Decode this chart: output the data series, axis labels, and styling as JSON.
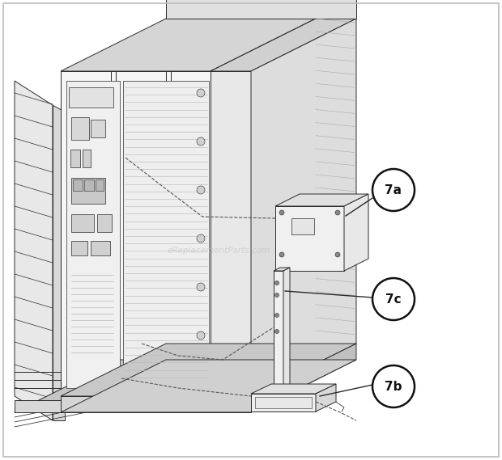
{
  "background_color": "#ffffff",
  "figure_width": 6.2,
  "figure_height": 5.69,
  "dpi": 100,
  "watermark_text": "eReplacementParts.com",
  "watermark_color": "#bbbbbb",
  "watermark_alpha": 0.5,
  "label_7a": "7a",
  "label_7b": "7b",
  "label_7c": "7c",
  "label_circle_color": "#ffffff",
  "label_circle_edgecolor": "#111111",
  "label_fontsize": 11,
  "lc": "#2a2a2a",
  "lw": 0.7,
  "border_color": "#bbbbbb",
  "border_linewidth": 1.2
}
